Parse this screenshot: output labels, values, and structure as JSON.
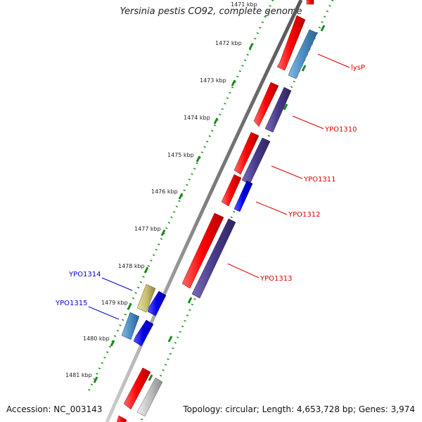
{
  "title": "Yersinia pestis CO92, complete genome",
  "footer": {
    "accession": "Accession: NC_003143",
    "topology": "Topology: circular; Length: 4,653,728 bp; Genes: 3,974"
  },
  "ticks": [
    "1471 kbp",
    "1472 kbp",
    "1473 kbp",
    "1474 kbp",
    "1475 kbp",
    "1476 kbp",
    "1477 kbp",
    "1478 kbp",
    "1479 kbp",
    "1480 kbp",
    "1481 kbp"
  ],
  "genes": [
    {
      "label": "lysP",
      "color": "#dd0000"
    },
    {
      "label": "YPO1310",
      "color": "#dd0000"
    },
    {
      "label": "YPO1311",
      "color": "#dd0000"
    },
    {
      "label": "YPO1312",
      "color": "#dd0000"
    },
    {
      "label": "YPO1313",
      "color": "#dd0000"
    },
    {
      "label": "YPO1314",
      "color": "#0000cc"
    },
    {
      "label": "YPO1315",
      "color": "#0000cc"
    }
  ],
  "colors": {
    "forward_gene": "#ff0000",
    "reverse_gene": "#0000ee",
    "steel_gene": "#4a8ec4",
    "purple_gene": "#4a3a8c",
    "khaki_gene": "#c8c070",
    "grey_gene": "#c0c0c0",
    "backbone": "#808080",
    "tick_dots": "#1a8a1a"
  }
}
